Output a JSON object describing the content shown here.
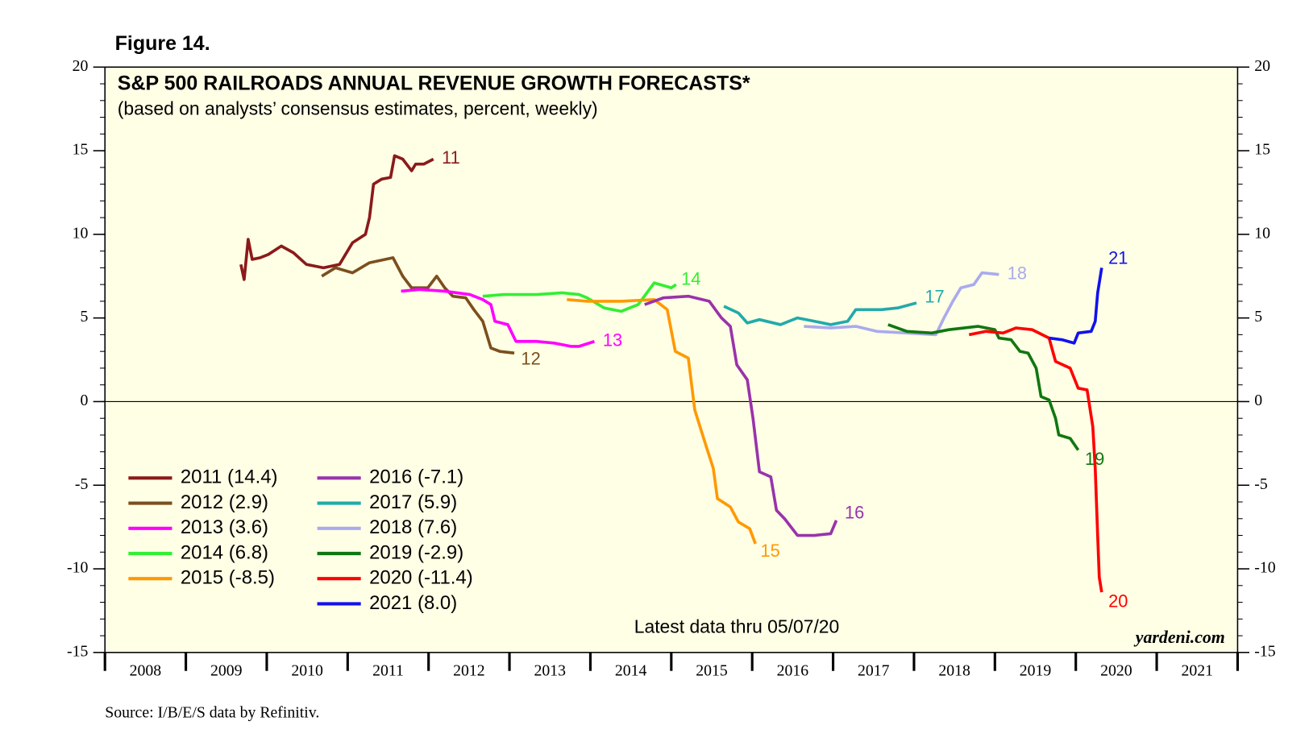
{
  "chart_data": {
    "type": "line",
    "figure_label": "Figure 14.",
    "title": "S&P 500 RAILROADS ANNUAL REVENUE GROWTH FORECASTS*",
    "subtitle": "(based on analysts’ consensus estimates, percent, weekly)",
    "annotation": "Latest data thru 05/07/20",
    "watermark": "yardeni.com",
    "source": "Source: I/B/E/S data by Refinitiv.",
    "xlim": [
      2008,
      2022
    ],
    "xticks": [
      {
        "value": 2008,
        "label": "2008"
      },
      {
        "value": 2009,
        "label": "2009"
      },
      {
        "value": 2010,
        "label": "2010"
      },
      {
        "value": 2011,
        "label": "2011"
      },
      {
        "value": 2012,
        "label": "2012"
      },
      {
        "value": 2013,
        "label": "2013"
      },
      {
        "value": 2014,
        "label": "2014"
      },
      {
        "value": 2015,
        "label": "2015"
      },
      {
        "value": 2016,
        "label": "2016"
      },
      {
        "value": 2017,
        "label": "2017"
      },
      {
        "value": 2018,
        "label": "2018"
      },
      {
        "value": 2019,
        "label": "2019"
      },
      {
        "value": 2020,
        "label": "2020"
      },
      {
        "value": 2021,
        "label": "2021"
      }
    ],
    "ylim": [
      -15,
      20
    ],
    "yticks": [
      -15,
      -10,
      -5,
      0,
      5,
      10,
      15,
      20
    ],
    "legend": "lower left",
    "series": [
      {
        "name": "2011 (14.4)",
        "end_label": "11",
        "color": "#8b1a1a",
        "x": [
          2009.68,
          2009.72,
          2009.77,
          2009.82,
          2009.92,
          2010.02,
          2010.18,
          2010.33,
          2010.49,
          2010.7,
          2010.9,
          2011.06,
          2011.22,
          2011.27,
          2011.32,
          2011.42,
          2011.53,
          2011.58,
          2011.68,
          2011.79,
          2011.84,
          2011.94,
          2012.06
        ],
        "values": [
          8.2,
          7.3,
          9.7,
          8.5,
          8.6,
          8.8,
          9.3,
          8.9,
          8.2,
          8.0,
          8.2,
          9.5,
          10.0,
          11.0,
          13.0,
          13.3,
          13.4,
          14.7,
          14.5,
          13.8,
          14.2,
          14.2,
          14.5
        ]
      },
      {
        "name": "2012 (2.9)",
        "end_label": "12",
        "color": "#7b4f1e",
        "x": [
          2010.68,
          2010.85,
          2011.06,
          2011.27,
          2011.56,
          2011.68,
          2011.79,
          2011.99,
          2012.1,
          2012.2,
          2012.3,
          2012.46,
          2012.56,
          2012.67,
          2012.77,
          2012.88,
          2013.06
        ],
        "values": [
          7.5,
          8.0,
          7.7,
          8.3,
          8.6,
          7.5,
          6.8,
          6.8,
          7.5,
          6.8,
          6.3,
          6.2,
          5.5,
          4.8,
          3.2,
          3.0,
          2.9
        ]
      },
      {
        "name": "2013 (3.6)",
        "end_label": "13",
        "color": "#ff00ff",
        "x": [
          2011.66,
          2011.89,
          2012.2,
          2012.51,
          2012.67,
          2012.77,
          2012.82,
          2012.98,
          2013.08,
          2013.34,
          2013.55,
          2013.76,
          2013.86,
          2014.05
        ],
        "values": [
          6.6,
          6.7,
          6.6,
          6.4,
          6.1,
          5.8,
          4.8,
          4.6,
          3.6,
          3.6,
          3.5,
          3.3,
          3.3,
          3.6
        ]
      },
      {
        "name": "2014 (6.8)",
        "end_label": "14",
        "color": "#33ee33",
        "x": [
          2012.67,
          2012.93,
          2013.34,
          2013.65,
          2013.86,
          2013.96,
          2014.17,
          2014.38,
          2014.59,
          2014.79,
          2015.0,
          2015.06
        ],
        "values": [
          6.3,
          6.4,
          6.4,
          6.5,
          6.4,
          6.2,
          5.6,
          5.4,
          5.8,
          7.1,
          6.8,
          7.0
        ]
      },
      {
        "name": "2015 (-8.5)",
        "end_label": "15",
        "color": "#ff9900",
        "x": [
          2013.71,
          2013.96,
          2014.38,
          2014.79,
          2014.95,
          2015.05,
          2015.21,
          2015.29,
          2015.42,
          2015.52,
          2015.57,
          2015.73,
          2015.83,
          2015.97,
          2016.04
        ],
        "values": [
          6.1,
          6.0,
          6.0,
          6.1,
          5.5,
          3.0,
          2.6,
          -0.5,
          -2.5,
          -4.0,
          -5.8,
          -6.3,
          -7.2,
          -7.6,
          -8.5
        ]
      },
      {
        "name": "2016 (-7.1)",
        "end_label": "16",
        "color": "#9933aa",
        "x": [
          2014.67,
          2014.9,
          2015.21,
          2015.47,
          2015.62,
          2015.73,
          2015.81,
          2015.94,
          2016.01,
          2016.09,
          2016.23,
          2016.3,
          2016.4,
          2016.56,
          2016.77,
          2016.97,
          2017.04
        ],
        "values": [
          5.8,
          6.2,
          6.3,
          6.0,
          5.0,
          4.5,
          2.2,
          1.3,
          -1.0,
          -4.2,
          -4.5,
          -6.5,
          -7.0,
          -8.0,
          -8.0,
          -7.9,
          -7.1
        ]
      },
      {
        "name": "2017 (5.9)",
        "end_label": "17",
        "color": "#22aaaa",
        "x": [
          2015.65,
          2015.83,
          2015.94,
          2016.09,
          2016.35,
          2016.56,
          2016.77,
          2016.97,
          2017.18,
          2017.28,
          2017.6,
          2017.8,
          2018.03
        ],
        "values": [
          5.7,
          5.3,
          4.7,
          4.9,
          4.6,
          5.0,
          4.8,
          4.6,
          4.8,
          5.5,
          5.5,
          5.6,
          5.9
        ]
      },
      {
        "name": "2018 (7.6)",
        "end_label": "18",
        "color": "#aaaaee",
        "x": [
          2016.64,
          2016.97,
          2017.28,
          2017.54,
          2017.91,
          2018.27,
          2018.37,
          2018.48,
          2018.58,
          2018.74,
          2018.84,
          2019.05
        ],
        "values": [
          4.5,
          4.4,
          4.5,
          4.2,
          4.1,
          4.0,
          5.0,
          6.0,
          6.8,
          7.0,
          7.7,
          7.6
        ]
      },
      {
        "name": "2019 (-2.9)",
        "end_label": "19",
        "color": "#117711",
        "x": [
          2017.68,
          2017.91,
          2018.22,
          2018.43,
          2018.79,
          2019.0,
          2019.05,
          2019.2,
          2019.31,
          2019.41,
          2019.51,
          2019.57,
          2019.67,
          2019.75,
          2019.79,
          2019.93,
          2020.03
        ],
        "values": [
          4.6,
          4.2,
          4.1,
          4.3,
          4.5,
          4.3,
          3.8,
          3.7,
          3.0,
          2.9,
          2.0,
          0.3,
          0.1,
          -1.0,
          -2.0,
          -2.2,
          -2.9
        ]
      },
      {
        "name": "2020 (-11.4)",
        "end_label": "20",
        "color": "#ff0000",
        "x": [
          2018.68,
          2018.89,
          2019.1,
          2019.26,
          2019.46,
          2019.67,
          2019.75,
          2019.93,
          2020.03,
          2020.14,
          2020.21,
          2020.24,
          2020.27,
          2020.29,
          2020.32
        ],
        "values": [
          4.0,
          4.2,
          4.1,
          4.4,
          4.3,
          3.8,
          2.4,
          2.0,
          0.8,
          0.7,
          -1.5,
          -4.0,
          -8.0,
          -10.5,
          -11.4
        ]
      },
      {
        "name": "2021 (8.0)",
        "end_label": "21",
        "color": "#1111ee",
        "x": [
          2019.67,
          2019.83,
          2019.98,
          2020.03,
          2020.19,
          2020.24,
          2020.27,
          2020.32
        ],
        "values": [
          3.8,
          3.7,
          3.5,
          4.1,
          4.2,
          4.8,
          6.5,
          8.0
        ]
      }
    ]
  }
}
